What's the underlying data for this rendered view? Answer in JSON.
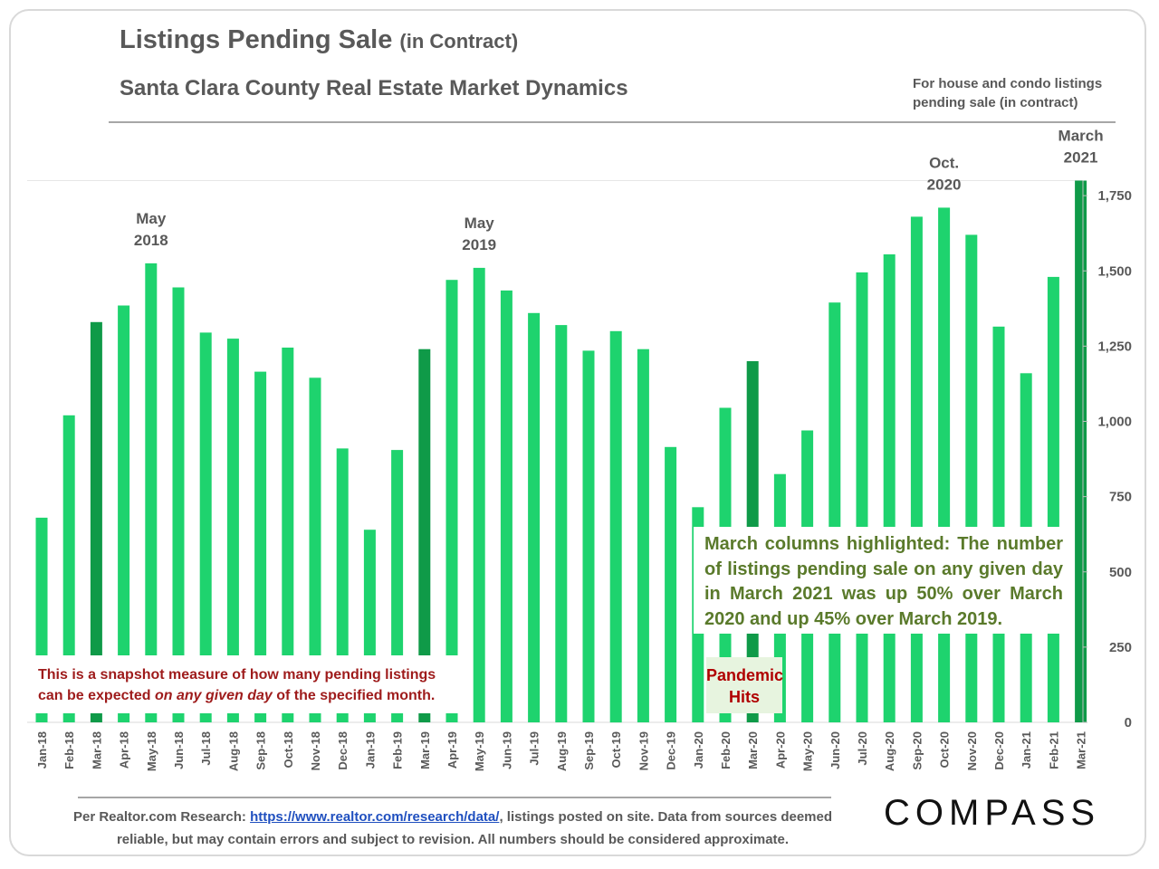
{
  "header": {
    "title": "Listings Pending Sale",
    "title_paren": "(in Contract)",
    "subtitle": "Santa Clara County Real Estate Market Dynamics",
    "side_note": "For house and condo listings pending sale (in contract)"
  },
  "annotations": {
    "snapshot_part1": "This is a snapshot measure of how many pending listings can be expected ",
    "snapshot_italic": "on any given day",
    "snapshot_part2": " of the specified month.",
    "march_note": "March columns highlighted: The number of listings pending sale on any given day in March 2021 was up 50% over March 2020 and up 45% over March 2019.",
    "pandemic_line1": "Pandemic",
    "pandemic_line2": "Hits"
  },
  "footer": {
    "prefix": "Per Realtor.com Research: ",
    "link": "https://www.realtor.com/research/data/",
    "suffix": ", listings posted on site. Data from sources deemed reliable, but may contain errors and subject to revision. All numbers should be considered approximate."
  },
  "logo": "COMPASS",
  "colors": {
    "bar": "#1ed36e",
    "highlight": "#0f9a48",
    "text": "#595959",
    "note_red": "#9e1b1b",
    "note_green": "#5a7a2b"
  },
  "chart_data": {
    "type": "bar",
    "categories": [
      "Jan-18",
      "Feb-18",
      "Mar-18",
      "Apr-18",
      "May-18",
      "Jun-18",
      "Jul-18",
      "Aug-18",
      "Sep-18",
      "Oct-18",
      "Nov-18",
      "Dec-18",
      "Jan-19",
      "Feb-19",
      "Mar-19",
      "Apr-19",
      "May-19",
      "Jun-19",
      "Jul-19",
      "Aug-19",
      "Sep-19",
      "Oct-19",
      "Nov-19",
      "Dec-19",
      "Jan-20",
      "Feb-20",
      "Mar-20",
      "Apr-20",
      "May-20",
      "Jun-20",
      "Jul-20",
      "Aug-20",
      "Sep-20",
      "Oct-20",
      "Nov-20",
      "Dec-20",
      "Jan-21",
      "Feb-21",
      "Mar-21"
    ],
    "values": [
      680,
      1020,
      1330,
      1385,
      1525,
      1445,
      1295,
      1275,
      1165,
      1245,
      1145,
      910,
      640,
      905,
      1240,
      1470,
      1510,
      1435,
      1360,
      1320,
      1235,
      1300,
      1240,
      915,
      715,
      1045,
      1200,
      825,
      970,
      1395,
      1495,
      1555,
      1680,
      1710,
      1620,
      1315,
      1160,
      1480,
      1800
    ],
    "highlighted": [
      "Mar-18",
      "Mar-19",
      "Mar-20",
      "Mar-21"
    ],
    "y_axis": {
      "position": "right",
      "ticks": [
        0,
        250,
        500,
        750,
        1000,
        1250,
        1500,
        1750
      ],
      "tick_labels": [
        "0",
        "250",
        "500",
        "750",
        "1,000",
        "1,250",
        "1,500",
        "1,750"
      ],
      "ylim": [
        0,
        1800
      ]
    },
    "callouts": [
      {
        "category": "May-18",
        "line1": "May",
        "line2": "2018"
      },
      {
        "category": "May-19",
        "line1": "May",
        "line2": "2019"
      },
      {
        "category": "Oct-20",
        "line1": "Oct.",
        "line2": "2020"
      },
      {
        "category": "Mar-21",
        "line1": "March",
        "line2": "2021"
      }
    ]
  }
}
